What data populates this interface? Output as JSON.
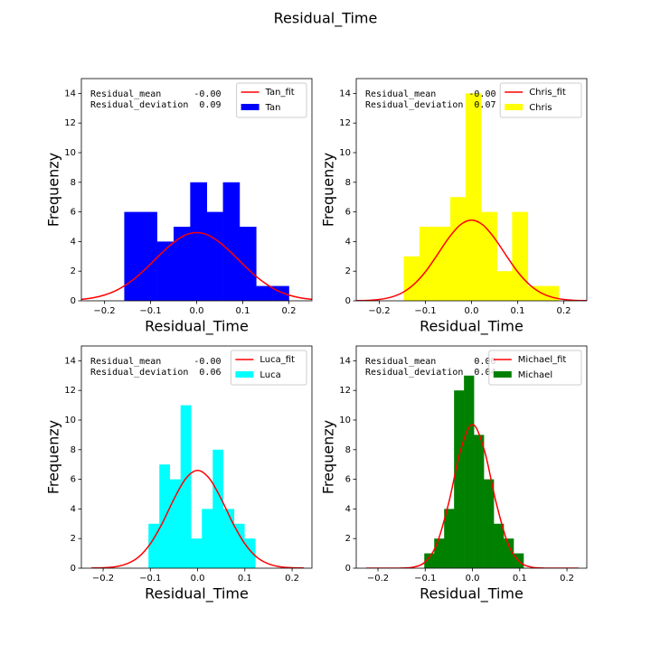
{
  "title": "Residual_Time",
  "chart_data": [
    {
      "type": "histogram",
      "xlabel": "Residual_Time",
      "ylabel": "Frequenzy",
      "xlim": [
        -0.25,
        0.25
      ],
      "ylim": [
        0,
        15
      ],
      "xticks": [
        {
          "value": -0.2,
          "label": "−0.2"
        },
        {
          "value": -0.1,
          "label": "−0.1"
        },
        {
          "value": 0,
          "label": "0.0"
        },
        0.1,
        0.2
      ],
      "yticks": [
        0,
        2,
        4,
        6,
        8,
        10,
        12,
        14
      ],
      "legend": "upper right",
      "annotations": [
        "Residual_mean      -0.00",
        "Residual_deviation  0.09"
      ],
      "histogram": {
        "name": "Tan",
        "color": "#0000ff",
        "bins": [
          -0.157,
          -0.121,
          -0.086,
          -0.05,
          -0.014,
          0.022,
          0.057,
          0.093,
          0.129,
          0.164,
          0.2
        ],
        "values": [
          6,
          6,
          4,
          5,
          8,
          6,
          8,
          5,
          1,
          1
        ]
      },
      "fit": {
        "name": "Tan_fit",
        "color": "#ff0000",
        "x": [
          -0.25,
          -0.225,
          -0.2,
          -0.175,
          -0.15,
          -0.125,
          -0.1,
          -0.075,
          -0.05,
          -0.025,
          0,
          0.025,
          0.05,
          0.075,
          0.1,
          0.125,
          0.15,
          0.175,
          0.2,
          0.225,
          0.25
        ],
        "values": [
          0.1,
          0.2,
          0.39,
          0.69,
          1.15,
          1.75,
          2.48,
          3.25,
          3.94,
          4.43,
          4.6,
          4.43,
          3.94,
          3.25,
          2.48,
          1.75,
          1.15,
          0.69,
          0.39,
          0.2,
          0.1
        ]
      }
    },
    {
      "type": "histogram",
      "xlabel": "Residual_Time",
      "ylabel": "Frequenzy",
      "xlim": [
        -0.25,
        0.25
      ],
      "ylim": [
        0,
        15
      ],
      "xticks": [
        {
          "value": -0.2,
          "label": "−0.2"
        },
        {
          "value": -0.1,
          "label": "−0.1"
        },
        {
          "value": 0,
          "label": "0.0"
        },
        0.1,
        0.2
      ],
      "yticks": [
        0,
        2,
        4,
        6,
        8,
        10,
        12,
        14
      ],
      "legend": "upper right",
      "annotations": [
        "Residual_mean      -0.00",
        "Residual_deviation  0.07"
      ],
      "histogram": {
        "name": "Chris",
        "color": "#ffff00",
        "bins": [
          -0.147,
          -0.113,
          -0.08,
          -0.046,
          -0.013,
          0.021,
          0.055,
          0.088,
          0.122,
          0.155,
          0.189
        ],
        "values": [
          3,
          5,
          5,
          7,
          14,
          6,
          2,
          6,
          1,
          1
        ]
      },
      "fit": {
        "name": "Chris_fit",
        "color": "#ff0000",
        "x": [
          -0.25,
          -0.225,
          -0.2,
          -0.175,
          -0.15,
          -0.125,
          -0.1,
          -0.075,
          -0.05,
          -0.025,
          0,
          0.025,
          0.05,
          0.075,
          0.1,
          0.125,
          0.15,
          0.175,
          0.2,
          0.225,
          0.25
        ],
        "values": [
          0.01,
          0.03,
          0.09,
          0.24,
          0.55,
          1.11,
          1.96,
          3.07,
          4.22,
          5.11,
          5.45,
          5.11,
          4.22,
          3.07,
          1.96,
          1.11,
          0.55,
          0.24,
          0.09,
          0.03,
          0.01
        ]
      }
    },
    {
      "type": "histogram",
      "xlabel": "Residual_Time",
      "ylabel": "Frequenzy",
      "xlim": [
        -0.246,
        0.242
      ],
      "ylim": [
        0,
        15
      ],
      "xticks": [
        {
          "value": -0.2,
          "label": "−0.2"
        },
        {
          "value": -0.1,
          "label": "−0.1"
        },
        {
          "value": 0,
          "label": "0.0"
        },
        0.1,
        0.2
      ],
      "yticks": [
        0,
        2,
        4,
        6,
        8,
        10,
        12,
        14
      ],
      "legend": "upper right",
      "annotations": [
        "Residual_mean      -0.00",
        "Residual_deviation  0.06"
      ],
      "histogram": {
        "name": "Luca",
        "color": "#00ffff",
        "bins": [
          -0.104,
          -0.081,
          -0.059,
          -0.036,
          -0.014,
          0.009,
          0.032,
          0.054,
          0.077,
          0.099,
          0.122
        ],
        "values": [
          3,
          7,
          6,
          11,
          2,
          4,
          8,
          4,
          3,
          2
        ]
      },
      "fit": {
        "name": "Luca_fit",
        "color": "#ff0000",
        "x": [
          -0.225,
          -0.2,
          -0.175,
          -0.15,
          -0.125,
          -0.1,
          -0.075,
          -0.05,
          -0.025,
          0,
          0.025,
          0.05,
          0.075,
          0.1,
          0.125,
          0.15,
          0.175,
          0.2,
          0.225
        ],
        "values": [
          0.01,
          0.03,
          0.09,
          0.29,
          0.75,
          1.65,
          3.02,
          4.67,
          6.05,
          6.6,
          6.05,
          4.67,
          3.02,
          1.65,
          0.75,
          0.29,
          0.09,
          0.03,
          0.01
        ]
      }
    },
    {
      "type": "histogram",
      "xlabel": "Residual_Time",
      "ylabel": "Frequenzy",
      "xlim": [
        -0.246,
        0.242
      ],
      "ylim": [
        0,
        15
      ],
      "xticks": [
        {
          "value": -0.2,
          "label": "−0.2"
        },
        {
          "value": -0.1,
          "label": "−0.1"
        },
        {
          "value": 0,
          "label": "0.0"
        },
        0.1,
        0.2
      ],
      "yticks": [
        0,
        2,
        4,
        6,
        8,
        10,
        12,
        14
      ],
      "legend": "upper right",
      "annotations": [
        "Residual_mean       0.00",
        "Residual_deviation  0.04"
      ],
      "histogram": {
        "name": "Michael",
        "color": "#008000",
        "bins": [
          -0.102,
          -0.081,
          -0.06,
          -0.039,
          -0.018,
          0.003,
          0.024,
          0.045,
          0.066,
          0.087,
          0.108
        ],
        "values": [
          1,
          2,
          4,
          12,
          13,
          9,
          6,
          3,
          2,
          1
        ]
      },
      "fit": {
        "name": "Michael_fit",
        "color": "#ff0000",
        "x": [
          -0.225,
          -0.2,
          -0.175,
          -0.15,
          -0.125,
          -0.1,
          -0.075,
          -0.05,
          -0.025,
          0,
          0.025,
          0.05,
          0.075,
          0.1,
          0.125,
          0.15,
          0.175,
          0.2,
          0.225
        ],
        "values": [
          0,
          0,
          0,
          0.01,
          0.07,
          0.43,
          1.67,
          4.44,
          7.98,
          9.7,
          7.98,
          4.44,
          1.67,
          0.43,
          0.07,
          0.01,
          0,
          0,
          0
        ]
      }
    }
  ]
}
